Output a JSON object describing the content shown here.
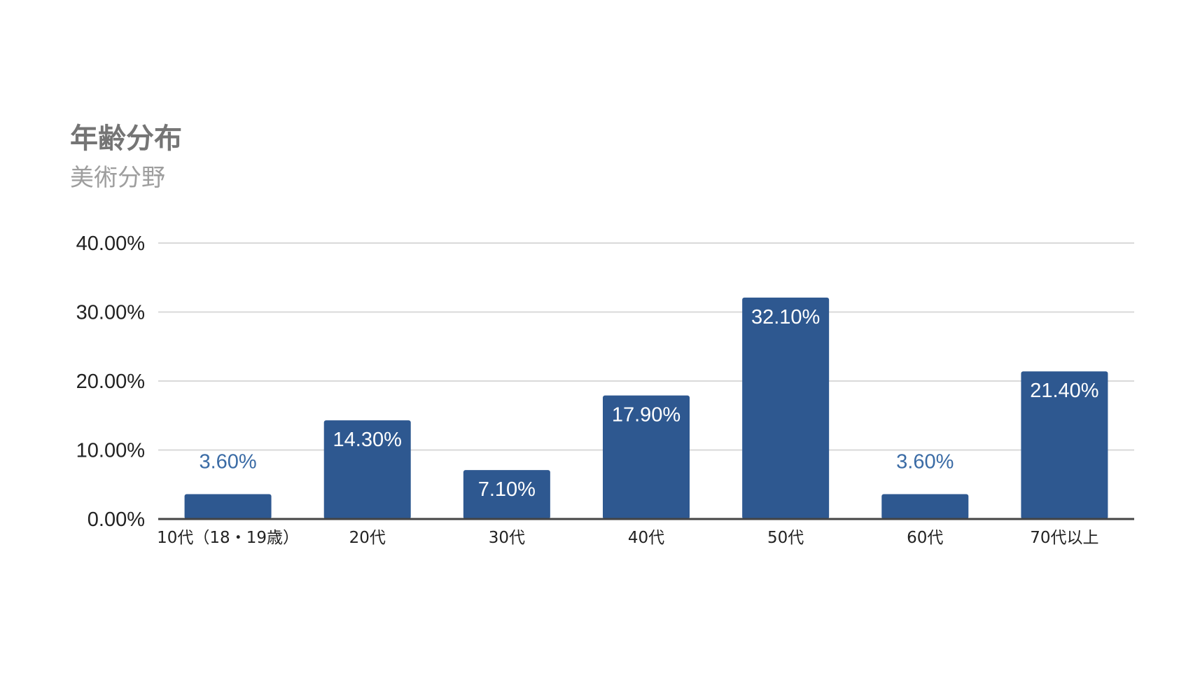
{
  "chart_data": {
    "type": "bar",
    "title": "年齢分布",
    "subtitle": "美術分野",
    "categories": [
      "10代（18・19歳）",
      "20代",
      "30代",
      "40代",
      "50代",
      "60代",
      "70代以上"
    ],
    "values": [
      3.6,
      14.3,
      7.1,
      17.9,
      32.1,
      3.6,
      21.4
    ],
    "data_labels": [
      "3.60%",
      "14.30%",
      "7.10%",
      "17.90%",
      "32.10%",
      "3.60%",
      "21.40%"
    ],
    "ylim": [
      0,
      40
    ],
    "yticks": [
      0,
      10,
      20,
      30,
      40
    ],
    "ytick_labels": [
      "0.00%",
      "10.00%",
      "20.00%",
      "30.00%",
      "40.00%"
    ],
    "xlabel": "",
    "ylabel": "",
    "grid": true,
    "legend": "none",
    "colors": {
      "bar": "#2e5890",
      "label_inside": "#ffffff",
      "label_outside": "#3a6ba5",
      "grid": "#d9d9d9",
      "axis": "#444444"
    }
  }
}
